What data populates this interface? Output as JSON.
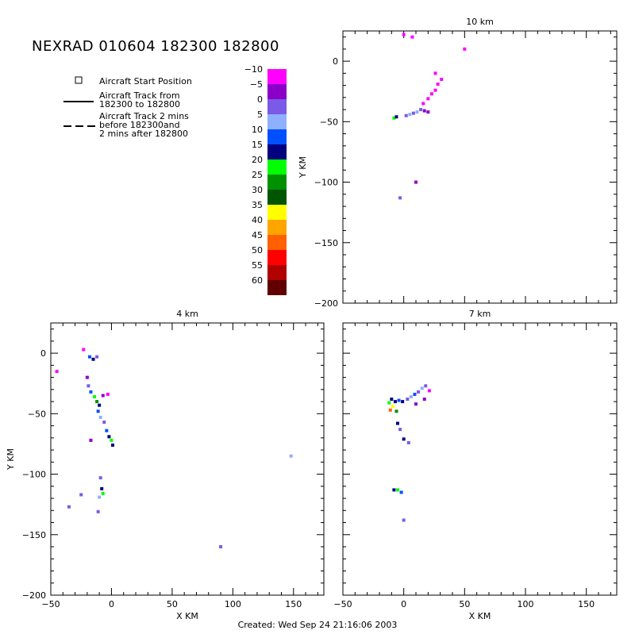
{
  "header": {
    "title": "NEXRAD 010604 182300 182800",
    "created": "Created: Wed Sep 24 21:16:06 2003"
  },
  "legend": {
    "start_position": "Aircraft Start Position",
    "track_line1": "Aircraft Track from",
    "track_line2": "182300 to 182800",
    "track2_line1": "Aircraft Track 2 mins",
    "track2_line2": "before 182300and",
    "track2_line3": "2 mins after 182800"
  },
  "colorbar": {
    "labels": [
      "-10",
      "-5",
      "0",
      "5",
      "10",
      "15",
      "20",
      "25",
      "30",
      "35",
      "40",
      "45",
      "50",
      "55",
      "60"
    ],
    "colors": [
      "#ff00ff",
      "#8a00c8",
      "#7a5ae6",
      "#8fb0ff",
      "#0050ff",
      "#000080",
      "#00ff00",
      "#009000",
      "#005500",
      "#ffff00",
      "#ffa500",
      "#ff6000",
      "#ff0000",
      "#b00000",
      "#600000"
    ]
  },
  "chart_data": [
    {
      "type": "heatmap",
      "title": "10 km",
      "xlabel": "",
      "ylabel": "Y KM",
      "xlim": [
        -50,
        175
      ],
      "ylim": [
        -200,
        25
      ],
      "xticks": [],
      "yticks": [
        "0",
        "−50",
        "−100",
        "−150",
        "−200"
      ],
      "points": [
        {
          "x": -8,
          "y": -47,
          "c": "#00ff00"
        },
        {
          "x": -6,
          "y": -46,
          "c": "#000080"
        },
        {
          "x": 2,
          "y": -45,
          "c": "#7a5ae6"
        },
        {
          "x": 5,
          "y": -44,
          "c": "#8fb0ff"
        },
        {
          "x": 8,
          "y": -43,
          "c": "#7a5ae6"
        },
        {
          "x": 11,
          "y": -42,
          "c": "#8fb0ff"
        },
        {
          "x": 14,
          "y": -40,
          "c": "#7a5ae6"
        },
        {
          "x": 17,
          "y": -41,
          "c": "#8a00c8"
        },
        {
          "x": 20,
          "y": -42,
          "c": "#8a00c8"
        },
        {
          "x": 16,
          "y": -35,
          "c": "#ff00ff"
        },
        {
          "x": 20,
          "y": -31,
          "c": "#ff00ff"
        },
        {
          "x": 23,
          "y": -27,
          "c": "#ff00ff"
        },
        {
          "x": 26,
          "y": -24,
          "c": "#ff00ff"
        },
        {
          "x": 28,
          "y": -19,
          "c": "#ff00ff"
        },
        {
          "x": 31,
          "y": -15,
          "c": "#ff00ff"
        },
        {
          "x": 26,
          "y": -10,
          "c": "#ff00ff"
        },
        {
          "x": 0,
          "y": 22,
          "c": "#ff00ff"
        },
        {
          "x": 7,
          "y": 20,
          "c": "#ff00ff"
        },
        {
          "x": 50,
          "y": 10,
          "c": "#ff00ff"
        },
        {
          "x": 10,
          "y": -100,
          "c": "#8a00c8"
        },
        {
          "x": -3,
          "y": -113,
          "c": "#7a5ae6"
        }
      ]
    },
    {
      "type": "heatmap",
      "title": "4 km",
      "xlabel": "X KM",
      "ylabel": "Y KM",
      "xlim": [
        -50,
        175
      ],
      "ylim": [
        -200,
        25
      ],
      "xticks": [
        "−50",
        "0",
        "50",
        "100",
        "150"
      ],
      "yticks": [
        "0",
        "−50",
        "−100",
        "−150",
        "−200"
      ],
      "points": [
        {
          "x": -18,
          "y": -3,
          "c": "#0050ff"
        },
        {
          "x": -15,
          "y": -5,
          "c": "#000080"
        },
        {
          "x": -12,
          "y": -3,
          "c": "#7a5ae6"
        },
        {
          "x": -23,
          "y": 3,
          "c": "#ff00ff"
        },
        {
          "x": -20,
          "y": -20,
          "c": "#8a00c8"
        },
        {
          "x": -19,
          "y": -27,
          "c": "#7a5ae6"
        },
        {
          "x": -17,
          "y": -32,
          "c": "#0050ff"
        },
        {
          "x": -14,
          "y": -36,
          "c": "#00ff00"
        },
        {
          "x": -12,
          "y": -40,
          "c": "#009000"
        },
        {
          "x": -10,
          "y": -43,
          "c": "#000080"
        },
        {
          "x": -7,
          "y": -35,
          "c": "#8a00c8"
        },
        {
          "x": -3,
          "y": -34,
          "c": "#ff00ff"
        },
        {
          "x": -11,
          "y": -48,
          "c": "#0050ff"
        },
        {
          "x": -9,
          "y": -53,
          "c": "#8fb0ff"
        },
        {
          "x": -6,
          "y": -57,
          "c": "#7a5ae6"
        },
        {
          "x": -4,
          "y": -64,
          "c": "#0050ff"
        },
        {
          "x": -2,
          "y": -69,
          "c": "#000080"
        },
        {
          "x": 0,
          "y": -72,
          "c": "#00ff00"
        },
        {
          "x": 1,
          "y": -76,
          "c": "#000080"
        },
        {
          "x": -17,
          "y": -72,
          "c": "#8a00c8"
        },
        {
          "x": -9,
          "y": -103,
          "c": "#7a5ae6"
        },
        {
          "x": -8,
          "y": -112,
          "c": "#000080"
        },
        {
          "x": -7,
          "y": -116,
          "c": "#00ff00"
        },
        {
          "x": -10,
          "y": -119,
          "c": "#8fb0ff"
        },
        {
          "x": -11,
          "y": -131,
          "c": "#7a5ae6"
        },
        {
          "x": -35,
          "y": -127,
          "c": "#7a5ae6"
        },
        {
          "x": -25,
          "y": -117,
          "c": "#7a5ae6"
        },
        {
          "x": -45,
          "y": -15,
          "c": "#ff00ff"
        },
        {
          "x": 148,
          "y": -85,
          "c": "#8fb0ff"
        },
        {
          "x": 90,
          "y": -160,
          "c": "#7a5ae6"
        }
      ]
    },
    {
      "type": "heatmap",
      "title": "7 km",
      "xlabel": "X KM",
      "ylabel": "",
      "xlim": [
        -50,
        175
      ],
      "ylim": [
        -200,
        25
      ],
      "xticks": [
        "−50",
        "0",
        "50",
        "100",
        "150"
      ],
      "yticks": [],
      "points": [
        {
          "x": -10,
          "y": -38,
          "c": "#000080"
        },
        {
          "x": -7,
          "y": -40,
          "c": "#000080"
        },
        {
          "x": -4,
          "y": -39,
          "c": "#0050ff"
        },
        {
          "x": -1,
          "y": -40,
          "c": "#000080"
        },
        {
          "x": -12,
          "y": -41,
          "c": "#00ff00"
        },
        {
          "x": -9,
          "y": -44,
          "c": "#ffff00"
        },
        {
          "x": -11,
          "y": -47,
          "c": "#ff6000"
        },
        {
          "x": -6,
          "y": -48,
          "c": "#009000"
        },
        {
          "x": 3,
          "y": -38,
          "c": "#7a5ae6"
        },
        {
          "x": 6,
          "y": -36,
          "c": "#8fb0ff"
        },
        {
          "x": 9,
          "y": -34,
          "c": "#0050ff"
        },
        {
          "x": 12,
          "y": -32,
          "c": "#7a5ae6"
        },
        {
          "x": 15,
          "y": -29,
          "c": "#8fb0ff"
        },
        {
          "x": 18,
          "y": -27,
          "c": "#7a5ae6"
        },
        {
          "x": 21,
          "y": -31,
          "c": "#ff00ff"
        },
        {
          "x": 17,
          "y": -38,
          "c": "#8a00c8"
        },
        {
          "x": 10,
          "y": -42,
          "c": "#8a00c8"
        },
        {
          "x": -5,
          "y": -58,
          "c": "#000080"
        },
        {
          "x": -3,
          "y": -63,
          "c": "#7a5ae6"
        },
        {
          "x": 0,
          "y": -71,
          "c": "#000080"
        },
        {
          "x": 4,
          "y": -74,
          "c": "#7a5ae6"
        },
        {
          "x": -8,
          "y": -113,
          "c": "#000080"
        },
        {
          "x": -5,
          "y": -113,
          "c": "#00ff00"
        },
        {
          "x": -2,
          "y": -115,
          "c": "#0050ff"
        },
        {
          "x": 0,
          "y": -138,
          "c": "#7a5ae6"
        }
      ]
    }
  ]
}
